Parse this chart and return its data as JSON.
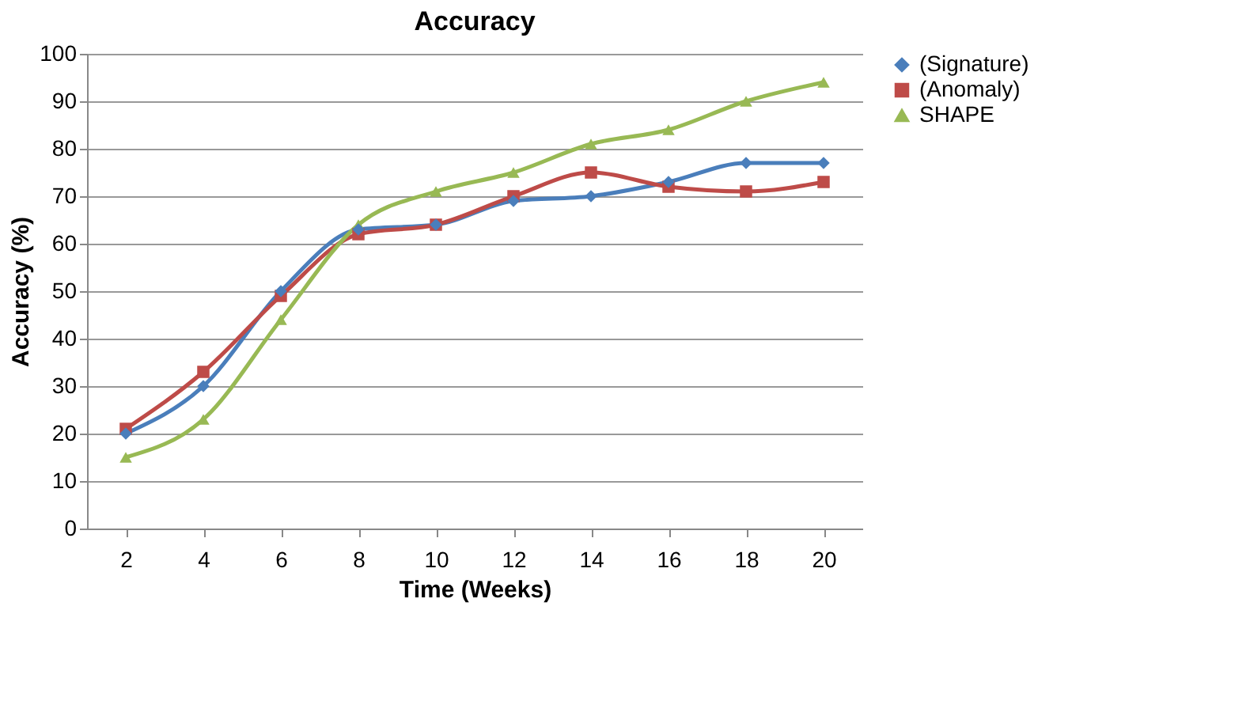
{
  "chart_data": {
    "type": "line",
    "title": "Accuracy",
    "xlabel": "Time (Weeks)",
    "ylabel": "Accuracy (%)",
    "categories": [
      "2",
      "4",
      "6",
      "8",
      "10",
      "12",
      "14",
      "16",
      "18",
      "20"
    ],
    "series": [
      {
        "name": "(Signature)",
        "color": "#4a7ebb",
        "marker": "diamond",
        "values": [
          20,
          30,
          50,
          63,
          64,
          69,
          70,
          73,
          77,
          77
        ]
      },
      {
        "name": "(Anomaly)",
        "color": "#be4b48",
        "marker": "square",
        "values": [
          21,
          33,
          49,
          62,
          64,
          70,
          75,
          72,
          71,
          73
        ]
      },
      {
        "name": "SHAPE",
        "color": "#98b954",
        "marker": "triangle",
        "values": [
          15,
          23,
          44,
          64,
          71,
          75,
          81,
          84,
          90,
          94
        ]
      }
    ],
    "ylim": [
      0,
      100
    ],
    "yticks": [
      0,
      10,
      20,
      30,
      40,
      50,
      60,
      70,
      80,
      90,
      100
    ],
    "grid": "y",
    "legend": "right",
    "line_style": "solid"
  }
}
